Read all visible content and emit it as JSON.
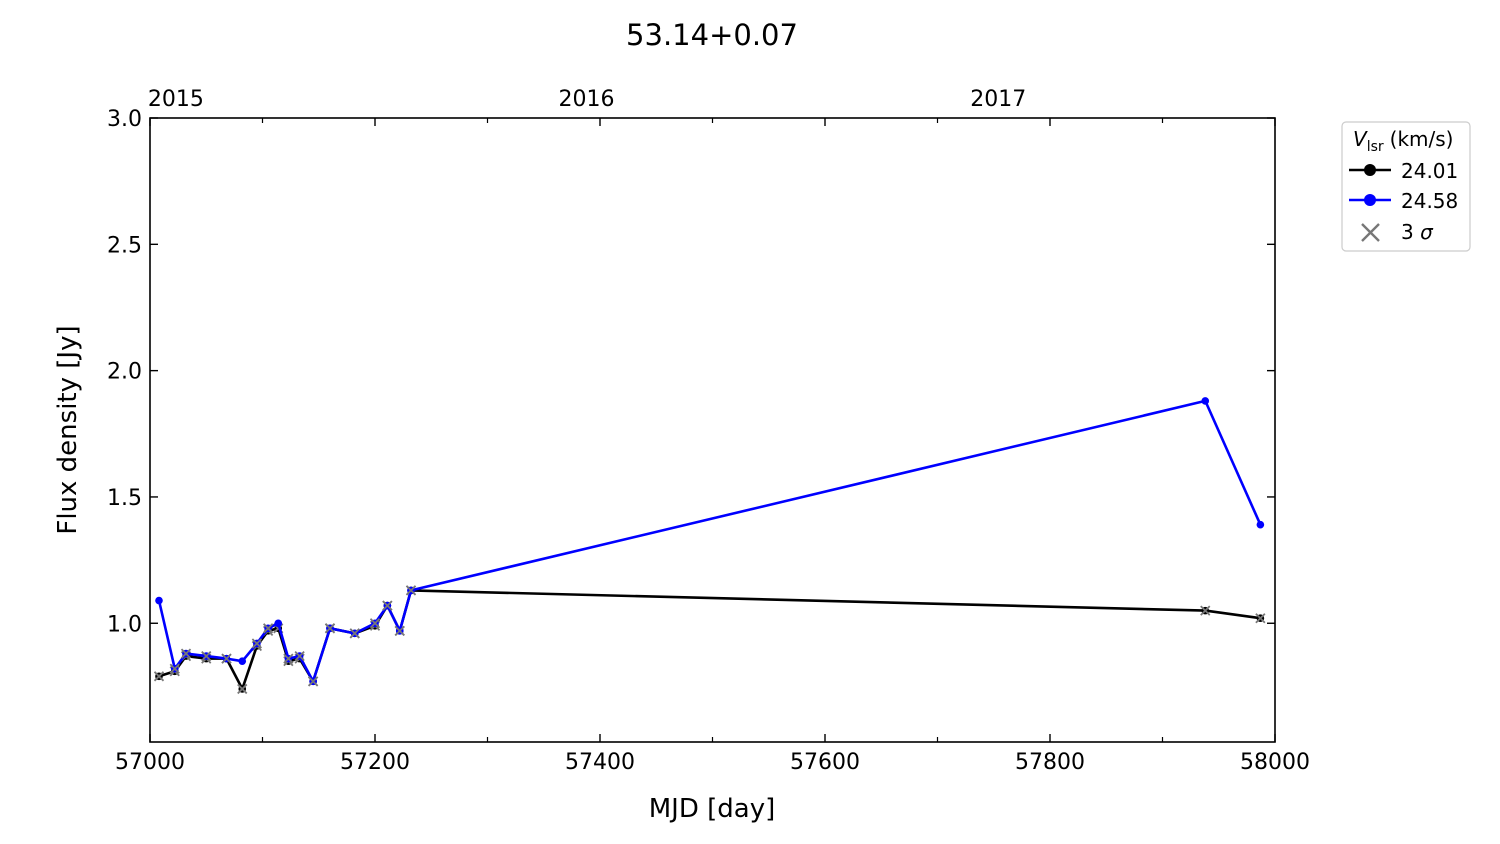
{
  "chart_data": {
    "type": "line",
    "title": "53.14+0.07",
    "xlabel": "MJD [day]",
    "ylabel": "Flux density [Jy]",
    "xlim": [
      57000,
      58000
    ],
    "ylim": [
      0.53,
      3.0
    ],
    "x_ticks": [
      57000,
      57200,
      57400,
      57600,
      57800,
      58000
    ],
    "x_tick_labels": [
      "57000",
      "57200",
      "57400",
      "57600",
      "57800",
      "58000"
    ],
    "x_minor_ticks": [
      57100,
      57300,
      57500,
      57700,
      57900
    ],
    "y_ticks": [
      1.0,
      1.5,
      2.0,
      2.5,
      3.0
    ],
    "y_tick_labels": [
      "1.0",
      "1.5",
      "2.0",
      "2.5",
      "3.0"
    ],
    "top_axis": {
      "ticks": [
        57023,
        57388,
        57754
      ],
      "labels": [
        "2015",
        "2016",
        "2017"
      ]
    },
    "grid": false,
    "legend": {
      "title_main": "V",
      "title_sub": "lsr",
      "title_unit": "(km/s)",
      "placement": "outside-top-right",
      "sigma_label_prefix": "3 ",
      "sigma_label_symbol": "σ"
    },
    "series": [
      {
        "name": "24.01",
        "color": "#000000",
        "x": [
          57008,
          57022,
          57032,
          57050,
          57068,
          57082,
          57095,
          57105,
          57114,
          57123,
          57133,
          57145,
          57160,
          57182,
          57200,
          57211,
          57222,
          57232,
          57938,
          57987
        ],
        "y": [
          0.79,
          0.81,
          0.87,
          0.86,
          0.86,
          0.74,
          0.91,
          0.97,
          0.98,
          0.85,
          0.86,
          0.77,
          0.98,
          0.96,
          0.99,
          1.07,
          0.97,
          1.13,
          1.05,
          1.02
        ],
        "upper_limit": [
          true,
          true,
          true,
          true,
          true,
          true,
          true,
          true,
          true,
          true,
          true,
          true,
          true,
          true,
          true,
          true,
          true,
          true,
          true,
          true
        ]
      },
      {
        "name": "24.58",
        "color": "#0000ff",
        "x": [
          57008,
          57022,
          57032,
          57050,
          57068,
          57082,
          57095,
          57105,
          57114,
          57123,
          57133,
          57145,
          57160,
          57182,
          57200,
          57211,
          57222,
          57232,
          57938,
          57987
        ],
        "y": [
          1.09,
          0.82,
          0.88,
          0.87,
          0.86,
          0.85,
          0.92,
          0.98,
          1.0,
          0.86,
          0.87,
          0.77,
          0.98,
          0.96,
          1.0,
          1.07,
          0.97,
          1.13,
          1.88,
          1.39
        ],
        "upper_limit": [
          false,
          true,
          true,
          true,
          true,
          false,
          true,
          true,
          false,
          true,
          true,
          true,
          true,
          true,
          true,
          true,
          true,
          true,
          false,
          false
        ]
      }
    ]
  }
}
